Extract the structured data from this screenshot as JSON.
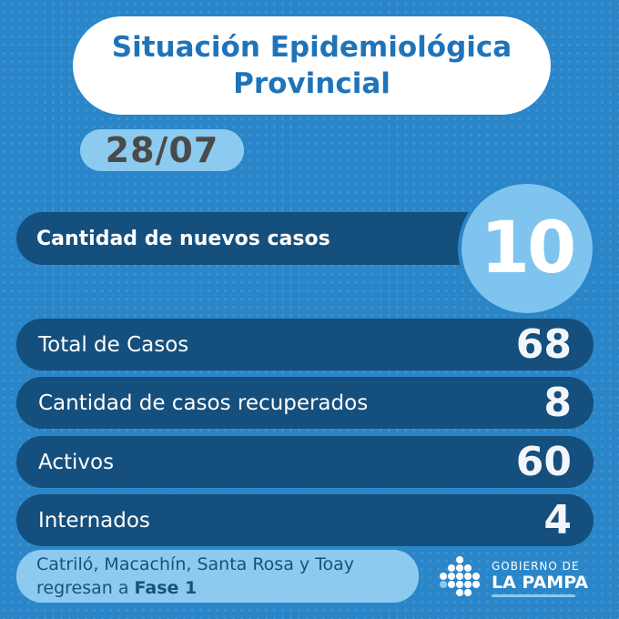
{
  "title": {
    "line1": "Situación Epidemiológica",
    "line2": "Provincial"
  },
  "date": "28/07",
  "new_cases": {
    "label": "Cantidad de nuevos casos",
    "value": "10"
  },
  "stats": [
    {
      "label": "Total de Casos",
      "value": "68"
    },
    {
      "label": "Cantidad de casos recuperados",
      "value": "8"
    },
    {
      "label": "Activos",
      "value": "60"
    },
    {
      "label": "Internados",
      "value": "4"
    }
  ],
  "note": {
    "line1": "Catriló, Macachín, Santa Rosa y Toay",
    "line2_prefix": "regresan a ",
    "line2_bold": "Fase 1"
  },
  "logo": {
    "line1": "GOBIERNO DE",
    "line2": "LA PAMPA"
  }
}
